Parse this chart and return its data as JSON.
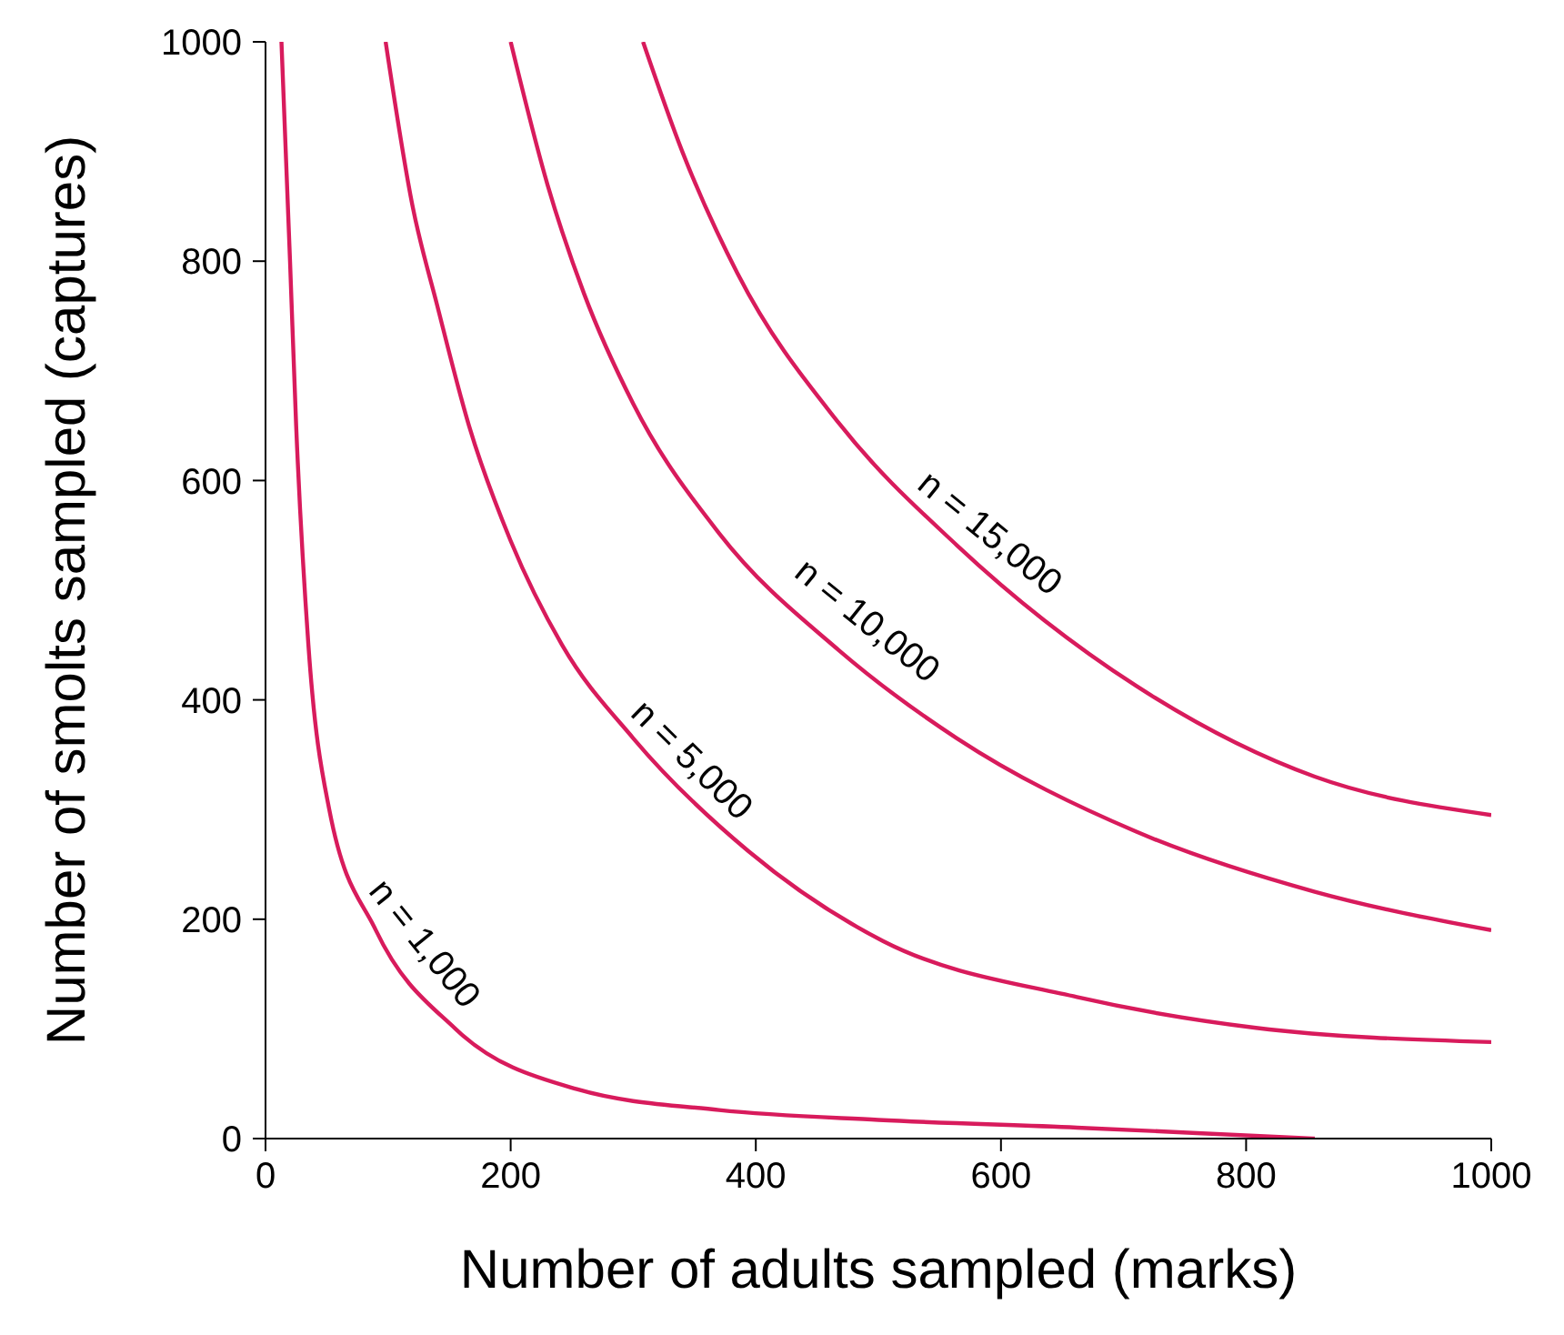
{
  "chart_data": {
    "type": "line",
    "xlabel": "Number of adults sampled (marks)",
    "ylabel": "Number of smolts sampled (captures)",
    "xlim": [
      0,
      1000
    ],
    "xticks": [
      0,
      200,
      400,
      600,
      800,
      1000
    ],
    "ylim": [
      0,
      1000
    ],
    "yticks": [
      0,
      200,
      400,
      600,
      800,
      1000
    ],
    "grid": false,
    "legend": false,
    "marker": "none",
    "line_style": "solid",
    "series": [
      {
        "color": "#d81b5c",
        "x": [
          13,
          20,
          25,
          35,
          52,
          90,
          155,
          254,
          370,
          500,
          662,
          760,
          856
        ],
        "values": [
          1000,
          800,
          650,
          450,
          300,
          190,
          100,
          45,
          26,
          17,
          10,
          5,
          0
        ]
      },
      {
        "color": "#d81b5c",
        "x": [
          98,
          120,
          140,
          166,
          200,
          242,
          300,
          394,
          504,
          662,
          808,
          1000
        ],
        "values": [
          1000,
          850,
          760,
          650,
          545,
          450,
          365,
          262,
          180,
          129,
          101,
          88
        ]
      },
      {
        "color": "#d81b5c",
        "x": [
          200,
          230,
          260,
          300,
          370,
          468,
          564,
          710,
          856,
          1000
        ],
        "values": [
          1000,
          870,
          770,
          670,
          552,
          445,
          365,
          280,
          225,
          190
        ]
      },
      {
        "color": "#d81b5c",
        "x": [
          308,
          340,
          385,
          468,
          564,
          710,
          856,
          1000
        ],
        "values": [
          1000,
          900,
          789,
          652,
          541,
          413,
          330,
          295
        ]
      }
    ],
    "annotations": [
      {
        "text": "n = 1,000",
        "x": 110,
        "y": 160
      },
      {
        "text": "n = 5,000",
        "x": 330,
        "y": 325
      },
      {
        "text": "n = 10,000",
        "x": 475,
        "y": 450
      },
      {
        "text": "n = 15,000",
        "x": 575,
        "y": 530
      }
    ]
  }
}
